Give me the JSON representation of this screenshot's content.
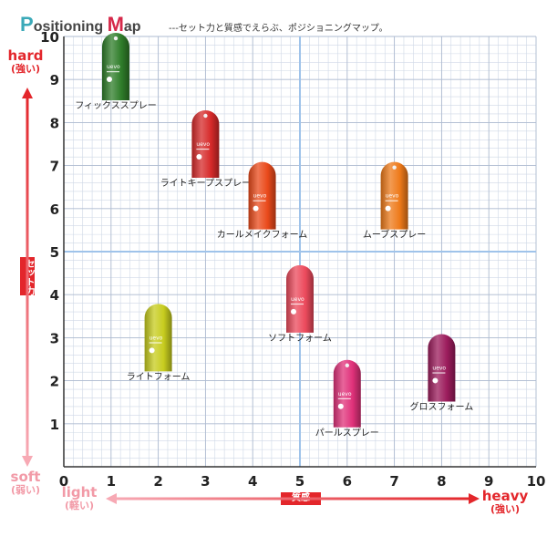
{
  "header": {
    "title_cap1": "P",
    "title_rest1": "ositioning ",
    "title_cap2": "M",
    "title_rest2": "ap",
    "subtitle": "---セット力と質感でえらぶ、ポジショニングマップ。"
  },
  "axes": {
    "y_top_label": "hard",
    "y_top_sub": "(強い)",
    "y_bottom_label": "soft",
    "y_bottom_sub": "(弱い)",
    "y_axis_badge": "セット力",
    "x_left_label": "light",
    "x_left_sub": "(軽い)",
    "x_right_label": "heavy",
    "x_right_sub": "(強い)",
    "x_axis_badge": "質感"
  },
  "colors": {
    "accent_red": "#e3262b",
    "soft_pink": "#f7a9b4",
    "grid_minor": "#cfd8e6",
    "grid_major": "#9fc3ea"
  },
  "chart_data": {
    "type": "scatter",
    "title": "Positioning Map",
    "subtitle": "---セット力と質感でえらぶ、ポジショニングマップ。",
    "xlabel": "質感",
    "ylabel": "セット力",
    "xlim": [
      0,
      10
    ],
    "ylim": [
      0,
      10
    ],
    "xticks": [
      0,
      1,
      2,
      3,
      4,
      5,
      6,
      7,
      8,
      9,
      10
    ],
    "yticks": [
      1,
      2,
      3,
      4,
      5,
      6,
      7,
      8,
      9,
      10
    ],
    "grid": true,
    "products": [
      {
        "name": "フィックススプレー",
        "x": 1.1,
        "y": 9.3,
        "color": "#2f7d2a",
        "shape": "spray-can"
      },
      {
        "name": "ライトキープスプレー",
        "x": 3.0,
        "y": 7.5,
        "color": "#d62a2a",
        "shape": "spray-can"
      },
      {
        "name": "カールメイクフォーム",
        "x": 4.2,
        "y": 6.3,
        "color": "#ea4a1b",
        "shape": "foam-can"
      },
      {
        "name": "ムーブスプレー",
        "x": 7.0,
        "y": 6.3,
        "color": "#ee7a1a",
        "shape": "spray-can"
      },
      {
        "name": "ソフトフォーム",
        "x": 5.0,
        "y": 3.9,
        "color": "#ec4a5c",
        "shape": "foam-can"
      },
      {
        "name": "ライトフォーム",
        "x": 2.0,
        "y": 3.0,
        "color": "#c7cc1e",
        "shape": "foam-can"
      },
      {
        "name": "パールスプレー",
        "x": 6.0,
        "y": 1.7,
        "color": "#e0317a",
        "shape": "spray-can"
      },
      {
        "name": "グロスフォーム",
        "x": 8.0,
        "y": 2.3,
        "color": "#9c1c5c",
        "shape": "foam-can"
      }
    ],
    "product_logo_text": "uevo"
  }
}
